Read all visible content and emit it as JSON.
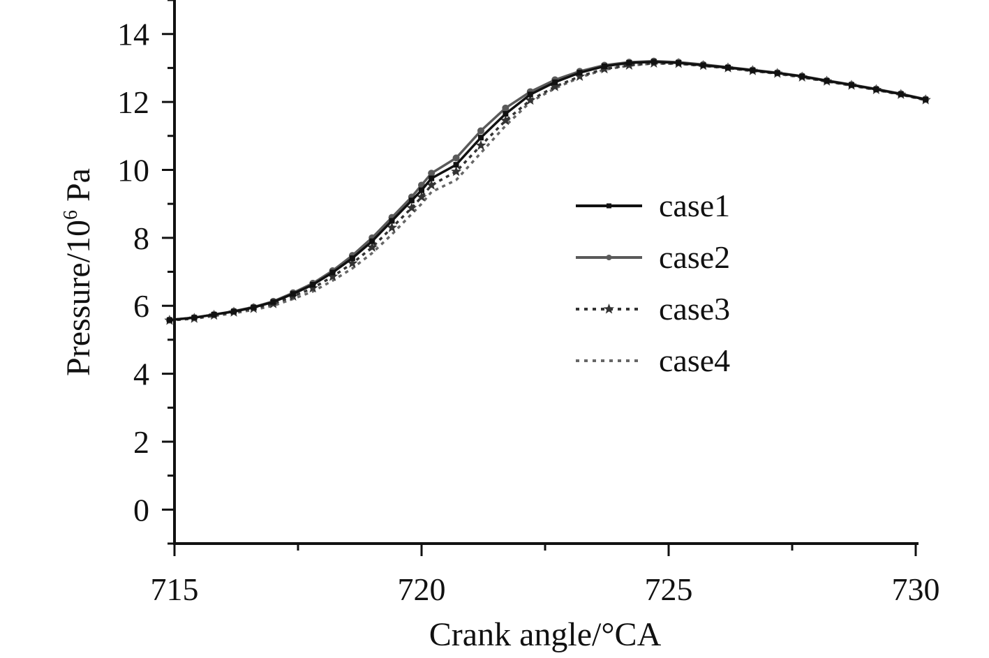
{
  "chart_data": {
    "type": "line",
    "xlabel": "Crank angle/°CA",
    "ylabel_main": "Pressure/10",
    "ylabel_sup": "6",
    "ylabel_unit": " Pa",
    "xlim": [
      715,
      730
    ],
    "ylim": [
      -1,
      15
    ],
    "xticks": [
      715,
      720,
      725,
      730
    ],
    "yticks": [
      0,
      2,
      4,
      6,
      8,
      10,
      12,
      14
    ],
    "grid": false,
    "legend_position": "center-right",
    "series": [
      {
        "name": "case1",
        "color": "#111111",
        "dash": "solid",
        "marker": "square",
        "x": [
          714.9,
          715.4,
          715.8,
          716.2,
          716.6,
          717.0,
          717.4,
          717.8,
          718.2,
          718.6,
          719.0,
          719.4,
          719.8,
          720.0,
          720.2,
          720.7,
          721.2,
          721.7,
          722.2,
          722.7,
          723.2,
          723.7,
          724.2,
          724.7,
          725.2,
          725.7,
          726.2,
          726.7,
          727.2,
          727.7,
          728.2,
          728.7,
          729.2,
          729.7,
          730.2
        ],
        "y": [
          5.58,
          5.65,
          5.74,
          5.83,
          5.95,
          6.11,
          6.35,
          6.62,
          6.98,
          7.4,
          7.9,
          8.5,
          9.1,
          9.4,
          9.75,
          10.15,
          10.95,
          11.65,
          12.22,
          12.58,
          12.86,
          13.05,
          13.15,
          13.18,
          13.15,
          13.08,
          13.01,
          12.93,
          12.85,
          12.75,
          12.62,
          12.5,
          12.37,
          12.23,
          12.07
        ]
      },
      {
        "name": "case2",
        "color": "#5a5a5a",
        "dash": "solid",
        "marker": "circle",
        "x": [
          714.9,
          715.4,
          715.8,
          716.2,
          716.6,
          717.0,
          717.4,
          717.8,
          718.2,
          718.6,
          719.0,
          719.4,
          719.8,
          720.0,
          720.2,
          720.7,
          721.2,
          721.7,
          722.2,
          722.7,
          723.2,
          723.7,
          724.2,
          724.7,
          725.2,
          725.7,
          726.2,
          726.7,
          727.2,
          727.7,
          728.2,
          728.7,
          729.2,
          729.7,
          730.2
        ],
        "y": [
          5.58,
          5.65,
          5.74,
          5.84,
          5.96,
          6.13,
          6.38,
          6.66,
          7.03,
          7.48,
          8.0,
          8.6,
          9.2,
          9.55,
          9.9,
          10.35,
          11.15,
          11.82,
          12.3,
          12.65,
          12.9,
          13.08,
          13.17,
          13.2,
          13.17,
          13.1,
          13.02,
          12.94,
          12.86,
          12.76,
          12.63,
          12.51,
          12.38,
          12.24,
          12.08
        ]
      },
      {
        "name": "case3",
        "color": "#333333",
        "dash": "dot",
        "marker": "star",
        "x": [
          714.9,
          715.4,
          715.8,
          716.2,
          716.6,
          717.0,
          717.4,
          717.8,
          718.2,
          718.6,
          719.0,
          719.4,
          719.8,
          720.0,
          720.2,
          720.7,
          721.2,
          721.7,
          722.2,
          722.7,
          723.2,
          723.7,
          724.2,
          724.7,
          725.2,
          725.7,
          726.2,
          726.7,
          727.2,
          727.7,
          728.2,
          728.7,
          729.2,
          729.7,
          730.2
        ],
        "y": [
          5.57,
          5.63,
          5.72,
          5.81,
          5.92,
          6.06,
          6.28,
          6.52,
          6.86,
          7.25,
          7.72,
          8.3,
          8.88,
          9.2,
          9.55,
          9.95,
          10.72,
          11.45,
          12.05,
          12.45,
          12.75,
          12.97,
          13.08,
          13.14,
          13.13,
          13.07,
          13.0,
          12.92,
          12.84,
          12.73,
          12.61,
          12.49,
          12.36,
          12.22,
          12.06
        ]
      },
      {
        "name": "case4",
        "color": "#666666",
        "dash": "dot",
        "marker": "none",
        "x": [
          714.9,
          715.4,
          715.8,
          716.2,
          716.6,
          717.0,
          717.4,
          717.8,
          718.2,
          718.6,
          719.0,
          719.4,
          719.8,
          720.0,
          720.2,
          720.7,
          721.2,
          721.7,
          722.2,
          722.7,
          723.2,
          723.7,
          724.2,
          724.7,
          725.2,
          725.7,
          726.2,
          726.7,
          727.2,
          727.7,
          728.2,
          728.7,
          729.2,
          729.7,
          730.2
        ],
        "y": [
          5.57,
          5.62,
          5.7,
          5.78,
          5.88,
          6.0,
          6.2,
          6.42,
          6.74,
          7.1,
          7.55,
          8.1,
          8.7,
          9.0,
          9.35,
          9.7,
          10.5,
          11.3,
          12.0,
          12.4,
          12.72,
          12.95,
          13.07,
          13.13,
          13.12,
          13.06,
          12.99,
          12.91,
          12.83,
          12.72,
          12.6,
          12.48,
          12.35,
          12.21,
          12.05
        ]
      }
    ]
  }
}
